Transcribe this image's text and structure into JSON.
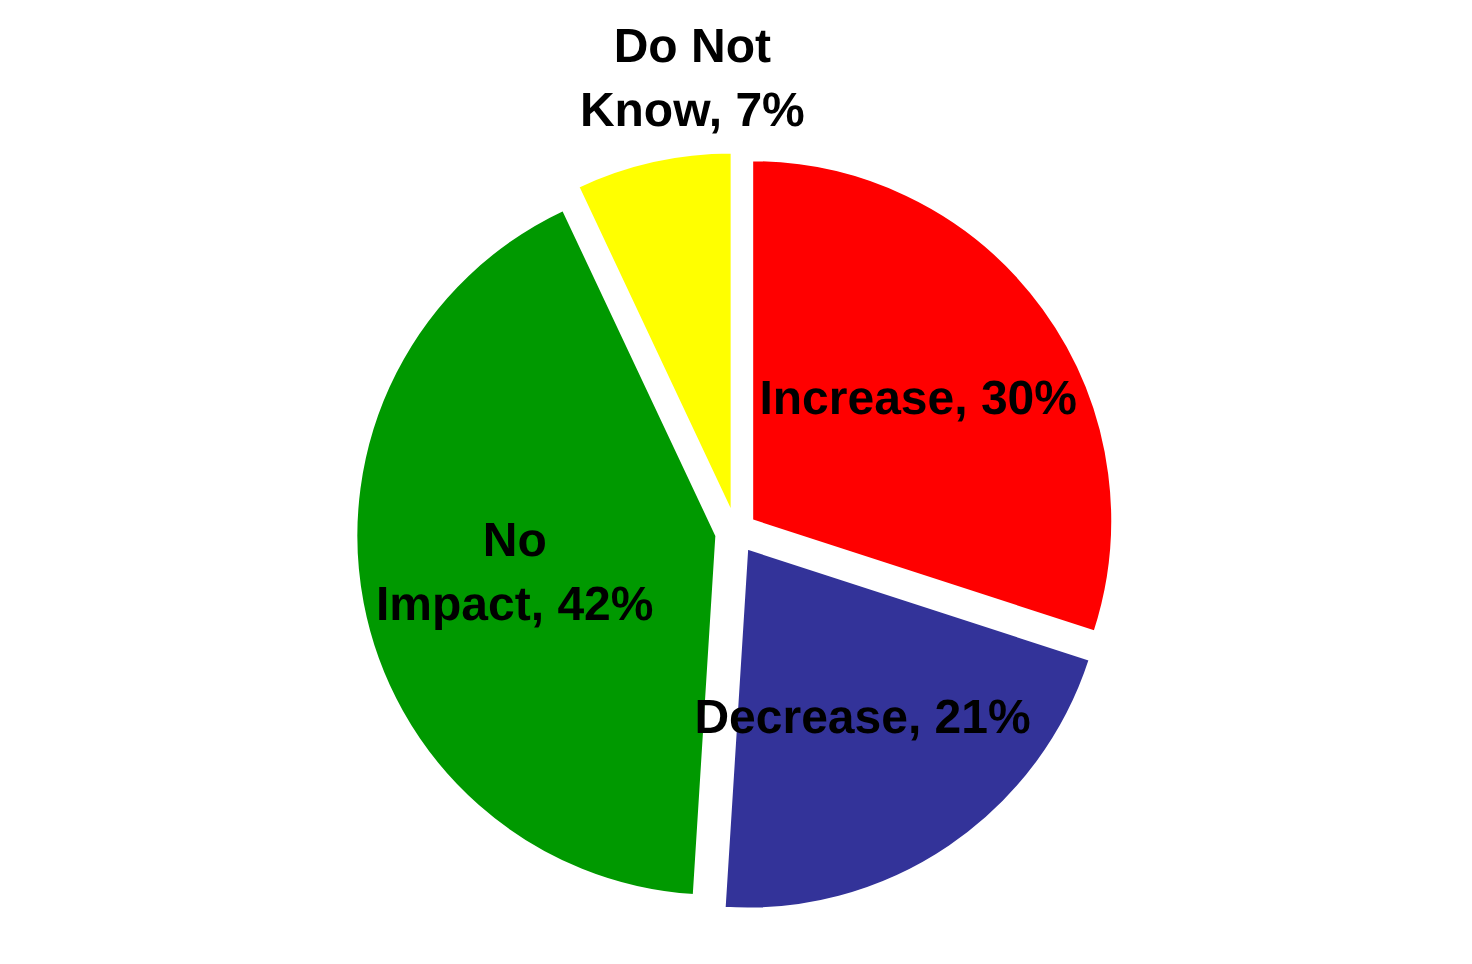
{
  "chart_data": {
    "type": "pie",
    "categories": [
      "Increase",
      "Decrease",
      "No Impact",
      "Do Not Know"
    ],
    "values": [
      30,
      21,
      42,
      7
    ],
    "value_labels": [
      "30%",
      "21%",
      "42%",
      "7%"
    ],
    "colors": [
      "#ff0000",
      "#333399",
      "#009900",
      "#ffff00"
    ]
  }
}
